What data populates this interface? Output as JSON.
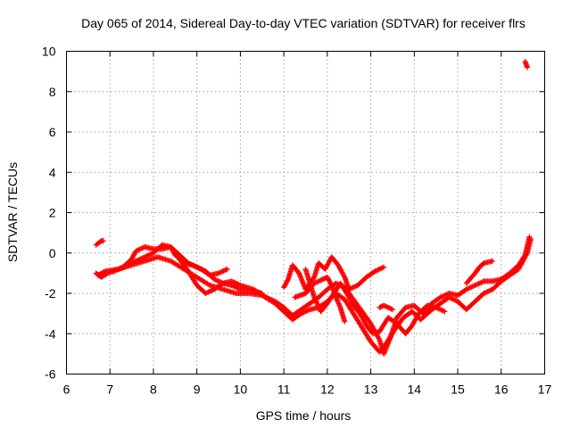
{
  "chart_data": {
    "type": "scatter",
    "title": "Day 065 of 2014, Sidereal Day-to-day VTEC variation (SDTVAR) for receiver flrs",
    "xlabel": "GPS time / hours",
    "ylabel": "SDTVAR / TECUs",
    "xlim": [
      6,
      17
    ],
    "ylim": [
      -6,
      10
    ],
    "xticks": [
      6,
      7,
      8,
      9,
      10,
      11,
      12,
      13,
      14,
      15,
      16,
      17
    ],
    "yticks": [
      -6,
      -4,
      -2,
      0,
      2,
      4,
      6,
      8,
      10
    ],
    "grid": true,
    "marker": "+",
    "colors": {
      "series": "#ff0000",
      "grid": "#a0a0a0",
      "axis": "#000000"
    },
    "series": [
      {
        "name": "flrs",
        "tracks": [
          [
            [
              6.68,
              0.4
            ],
            [
              6.8,
              0.6
            ],
            [
              6.85,
              0.6
            ]
          ],
          [
            [
              6.68,
              -1.0
            ],
            [
              6.8,
              -1.2
            ],
            [
              6.95,
              -1.0
            ],
            [
              7.1,
              -0.9
            ],
            [
              7.3,
              -0.7
            ],
            [
              7.5,
              -0.3
            ],
            [
              7.6,
              0.1
            ],
            [
              7.8,
              0.3
            ],
            [
              8.0,
              0.2
            ],
            [
              8.2,
              0.2
            ],
            [
              8.4,
              0.3
            ],
            [
              8.6,
              -0.1
            ],
            [
              8.8,
              -0.5
            ],
            [
              9.0,
              -0.7
            ],
            [
              9.2,
              -0.9
            ],
            [
              9.4,
              -1.3
            ],
            [
              9.6,
              -1.5
            ],
            [
              9.8,
              -1.4
            ],
            [
              10.0,
              -1.6
            ],
            [
              10.3,
              -1.8
            ],
            [
              10.6,
              -2.2
            ],
            [
              10.8,
              -2.4
            ],
            [
              11.0,
              -2.7
            ],
            [
              11.2,
              -3.1
            ],
            [
              11.4,
              -2.8
            ],
            [
              11.6,
              -2.5
            ],
            [
              11.8,
              -2.2
            ],
            [
              12.0,
              -1.8
            ],
            [
              12.2,
              -1.5
            ],
            [
              12.4,
              -1.7
            ],
            [
              12.6,
              -2.3
            ],
            [
              12.8,
              -2.9
            ],
            [
              13.0,
              -3.5
            ],
            [
              13.2,
              -4.3
            ],
            [
              13.3,
              -5.0
            ],
            [
              13.45,
              -4.2
            ],
            [
              13.6,
              -3.2
            ],
            [
              13.8,
              -2.7
            ],
            [
              14.0,
              -2.6
            ],
            [
              14.2,
              -3.0
            ],
            [
              14.4,
              -2.5
            ],
            [
              14.6,
              -2.2
            ],
            [
              14.8,
              -2.0
            ],
            [
              15.0,
              -2.1
            ],
            [
              15.2,
              -1.8
            ],
            [
              15.4,
              -1.6
            ],
            [
              15.6,
              -1.4
            ],
            [
              15.8,
              -1.4
            ],
            [
              16.0,
              -1.3
            ],
            [
              16.2,
              -1.0
            ],
            [
              16.4,
              -0.6
            ],
            [
              16.55,
              -0.1
            ],
            [
              16.65,
              0.8
            ]
          ],
          [
            [
              6.72,
              -1.1
            ],
            [
              6.9,
              -0.9
            ],
            [
              7.2,
              -0.8
            ],
            [
              7.5,
              -0.6
            ],
            [
              7.8,
              -0.4
            ],
            [
              8.1,
              -0.2
            ],
            [
              8.4,
              -0.4
            ],
            [
              8.7,
              -0.8
            ],
            [
              9.0,
              -1.2
            ],
            [
              9.3,
              -1.6
            ],
            [
              9.6,
              -1.8
            ],
            [
              9.9,
              -2.0
            ],
            [
              10.2,
              -2.0
            ],
            [
              10.5,
              -2.1
            ],
            [
              10.8,
              -2.5
            ],
            [
              11.0,
              -2.9
            ],
            [
              11.2,
              -3.3
            ],
            [
              11.4,
              -3.0
            ],
            [
              11.6,
              -2.8
            ],
            [
              11.8,
              -2.7
            ],
            [
              12.0,
              -2.4
            ],
            [
              12.2,
              -2.0
            ],
            [
              12.4,
              -2.3
            ],
            [
              12.6,
              -3.0
            ],
            [
              12.8,
              -3.7
            ],
            [
              13.0,
              -4.4
            ],
            [
              13.2,
              -4.9
            ],
            [
              13.35,
              -4.5
            ],
            [
              13.55,
              -3.8
            ],
            [
              13.75,
              -3.2
            ],
            [
              13.95,
              -2.9
            ],
            [
              14.15,
              -3.3
            ],
            [
              14.35,
              -2.9
            ],
            [
              14.6,
              -2.5
            ],
            [
              14.8,
              -2.2
            ],
            [
              15.0,
              -2.4
            ],
            [
              15.2,
              -2.8
            ],
            [
              15.4,
              -2.4
            ],
            [
              15.6,
              -2.0
            ],
            [
              15.8,
              -1.8
            ],
            [
              16.0,
              -1.4
            ],
            [
              16.2,
              -1.1
            ],
            [
              16.4,
              -0.8
            ],
            [
              16.6,
              0.0
            ],
            [
              16.68,
              0.7
            ]
          ],
          [
            [
              7.2,
              -0.8
            ],
            [
              7.5,
              -0.5
            ],
            [
              7.8,
              -0.2
            ],
            [
              8.0,
              0.0
            ],
            [
              8.2,
              0.4
            ],
            [
              8.4,
              0.3
            ],
            [
              8.5,
              -0.1
            ],
            [
              8.7,
              -0.5
            ],
            [
              8.9,
              -0.6
            ],
            [
              9.1,
              -0.8
            ],
            [
              9.3,
              -1.1
            ],
            [
              9.5,
              -1.0
            ],
            [
              9.7,
              -0.8
            ]
          ],
          [
            [
              8.6,
              -0.3
            ],
            [
              8.8,
              -0.9
            ],
            [
              9.0,
              -1.6
            ],
            [
              9.2,
              -2.0
            ],
            [
              9.4,
              -1.8
            ],
            [
              9.6,
              -1.5
            ],
            [
              9.8,
              -1.6
            ],
            [
              10.0,
              -1.8
            ],
            [
              10.2,
              -1.8
            ],
            [
              10.5,
              -2.0
            ]
          ],
          [
            [
              11.0,
              -1.7
            ],
            [
              11.1,
              -1.3
            ],
            [
              11.2,
              -0.6
            ],
            [
              11.35,
              -1.0
            ],
            [
              11.5,
              -1.8
            ],
            [
              11.7,
              -1.2
            ],
            [
              11.8,
              -0.5
            ],
            [
              11.95,
              -0.8
            ],
            [
              12.1,
              -0.2
            ],
            [
              12.25,
              -0.6
            ],
            [
              12.4,
              -1.2
            ],
            [
              12.5,
              -1.8
            ],
            [
              12.7,
              -1.6
            ],
            [
              12.9,
              -1.2
            ],
            [
              13.1,
              -0.9
            ],
            [
              13.3,
              -0.7
            ]
          ],
          [
            [
              11.25,
              -2.2
            ],
            [
              11.5,
              -2.0
            ],
            [
              11.7,
              -1.5
            ],
            [
              11.9,
              -1.3
            ],
            [
              12.0,
              -1.2
            ],
            [
              12.1,
              -1.6
            ],
            [
              12.2,
              -2.2
            ],
            [
              12.3,
              -2.7
            ],
            [
              12.4,
              -3.4
            ]
          ],
          [
            [
              11.5,
              -0.8
            ],
            [
              11.6,
              -1.5
            ],
            [
              11.7,
              -2.2
            ],
            [
              11.85,
              -2.9
            ],
            [
              12.0,
              -2.5
            ],
            [
              12.15,
              -2.0
            ],
            [
              12.3,
              -1.5
            ],
            [
              12.45,
              -2.0
            ],
            [
              12.6,
              -2.6
            ],
            [
              12.75,
              -3.0
            ],
            [
              12.9,
              -3.6
            ],
            [
              13.05,
              -4.0
            ],
            [
              13.2,
              -3.9
            ],
            [
              13.4,
              -3.2
            ],
            [
              13.6,
              -3.5
            ],
            [
              13.8,
              -4.0
            ],
            [
              13.95,
              -3.6
            ],
            [
              14.1,
              -3.0
            ],
            [
              14.3,
              -2.6
            ],
            [
              14.5,
              -2.7
            ],
            [
              14.7,
              -2.9
            ]
          ],
          [
            [
              15.2,
              -1.5
            ],
            [
              15.4,
              -1.0
            ],
            [
              15.5,
              -0.7
            ],
            [
              15.6,
              -0.5
            ],
            [
              15.8,
              -0.4
            ]
          ],
          [
            [
              13.2,
              -2.7
            ],
            [
              13.3,
              -2.6
            ],
            [
              13.5,
              -2.8
            ]
          ],
          [
            [
              16.55,
              9.5
            ],
            [
              16.6,
              9.2
            ]
          ]
        ]
      }
    ]
  }
}
